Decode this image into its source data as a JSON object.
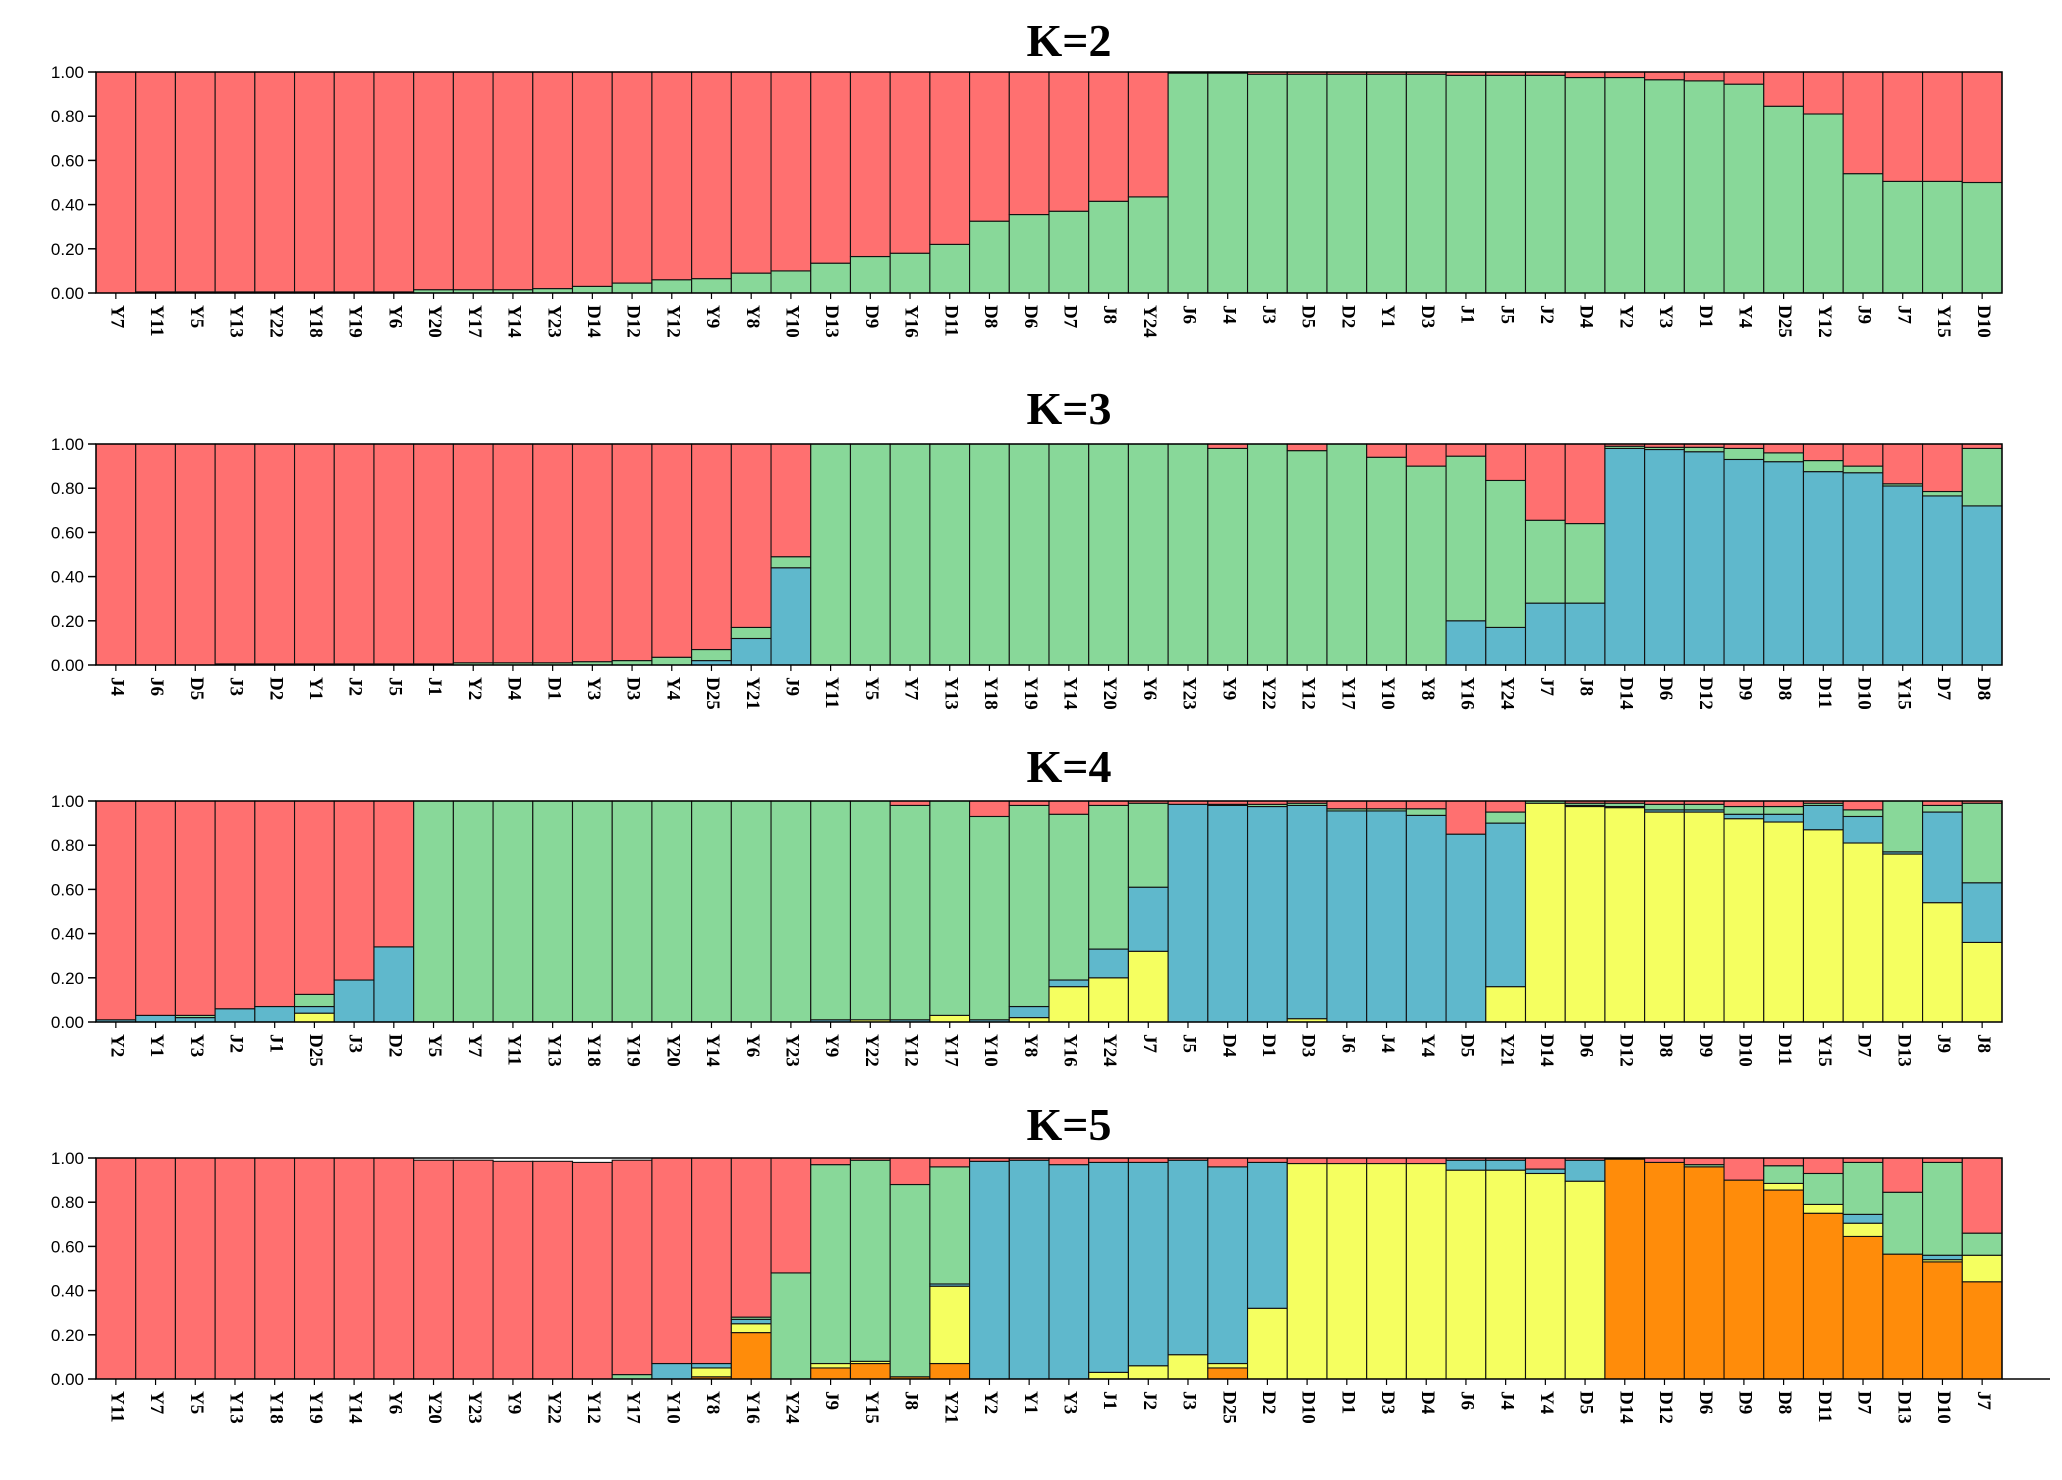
{
  "colors": {
    "red": "#FF7070",
    "green": "#88D899",
    "blue": "#5FB8CC",
    "yellow": "#F5FF60",
    "orange": "#FF8C0A"
  },
  "chart_data": [
    {
      "type": "bar",
      "stacked": true,
      "title": "K=2",
      "ylim": [
        0,
        1
      ],
      "yticks": [
        "0.00",
        "0.20",
        "0.40",
        "0.60",
        "0.80",
        "1.00"
      ],
      "categories": [
        "Y7",
        "Y11",
        "Y5",
        "Y13",
        "Y22",
        "Y18",
        "Y19",
        "Y6",
        "Y20",
        "Y17",
        "Y14",
        "Y23",
        "D14",
        "D12",
        "Y12",
        "Y9",
        "Y8",
        "Y10",
        "D13",
        "D9",
        "Y16",
        "D11",
        "D8",
        "D6",
        "D7",
        "J8",
        "Y24",
        "J6",
        "J4",
        "J3",
        "D5",
        "D2",
        "Y1",
        "D3",
        "J1",
        "J5",
        "J2",
        "D4",
        "Y2",
        "Y3",
        "D1",
        "Y4",
        "D25",
        "Y12",
        "J9",
        "J7",
        "Y15",
        "D10"
      ],
      "series": [
        {
          "name": "cluster-green",
          "color": "green",
          "values": [
            0,
            0.005,
            0.005,
            0.005,
            0.005,
            0.005,
            0.005,
            0.005,
            0.015,
            0.015,
            0.015,
            0.02,
            0.03,
            0.045,
            0.06,
            0.065,
            0.09,
            0.1,
            0.135,
            0.165,
            0.18,
            0.22,
            0.325,
            0.355,
            0.37,
            0.415,
            0.435,
            0.995,
            0.995,
            0.99,
            0.99,
            0.99,
            0.99,
            0.99,
            0.985,
            0.985,
            0.985,
            0.975,
            0.975,
            0.965,
            0.96,
            0.945,
            0.845,
            0.81,
            0.54,
            0.505,
            0.505,
            0.5
          ]
        },
        {
          "name": "cluster-red",
          "color": "red",
          "values": [
            1,
            0.995,
            0.995,
            0.995,
            0.995,
            0.995,
            0.995,
            0.995,
            0.985,
            0.985,
            0.985,
            0.98,
            0.97,
            0.955,
            0.94,
            0.935,
            0.91,
            0.9,
            0.865,
            0.835,
            0.82,
            0.78,
            0.675,
            0.645,
            0.63,
            0.585,
            0.565,
            0.005,
            0.005,
            0.01,
            0.01,
            0.01,
            0.01,
            0.01,
            0.015,
            0.015,
            0.015,
            0.025,
            0.025,
            0.035,
            0.04,
            0.055,
            0.155,
            0.19,
            0.46,
            0.495,
            0.495,
            0.5
          ]
        }
      ]
    },
    {
      "type": "bar",
      "stacked": true,
      "title": "K=3",
      "ylim": [
        0,
        1
      ],
      "yticks": [
        "0.00",
        "0.20",
        "0.40",
        "0.60",
        "0.80",
        "1.00"
      ],
      "categories": [
        "J4",
        "J6",
        "D5",
        "J3",
        "D2",
        "Y1",
        "J2",
        "J5",
        "J1",
        "Y2",
        "D4",
        "D1",
        "Y3",
        "D3",
        "Y4",
        "D25",
        "Y21",
        "J9",
        "Y11",
        "Y5",
        "Y7",
        "Y13",
        "Y18",
        "Y19",
        "Y14",
        "Y20",
        "Y6",
        "Y23",
        "Y9",
        "Y22",
        "Y12",
        "Y17",
        "Y10",
        "Y8",
        "Y16",
        "Y24",
        "J7",
        "J8",
        "D14",
        "D6",
        "D12",
        "D9",
        "D8",
        "D11",
        "D10",
        "Y15",
        "D7",
        "D8"
      ],
      "series": [
        {
          "name": "cluster-blue",
          "color": "blue",
          "values": [
            0,
            0,
            0,
            0,
            0,
            0,
            0,
            0,
            0,
            0,
            0,
            0,
            0,
            0,
            0,
            0.02,
            0.12,
            0.44,
            0,
            0,
            0,
            0,
            0,
            0,
            0,
            0,
            0,
            0,
            0,
            0,
            0,
            0,
            0,
            0,
            0.2,
            0.17,
            0.28,
            0.28,
            0.98,
            0.975,
            0.965,
            0.93,
            0.92,
            0.875,
            0.87,
            0.81,
            0.765,
            0.72
          ]
        },
        {
          "name": "cluster-green",
          "color": "green",
          "values": [
            0,
            0,
            0,
            0.005,
            0.005,
            0.005,
            0.005,
            0.005,
            0.005,
            0.01,
            0.01,
            0.01,
            0.015,
            0.02,
            0.035,
            0.05,
            0.05,
            0.05,
            1,
            1,
            1,
            1,
            1,
            1,
            1,
            1,
            1,
            1,
            0.98,
            1,
            0.97,
            1,
            0.94,
            0.9,
            0.745,
            0.665,
            0.375,
            0.36,
            0.01,
            0.01,
            0.02,
            0.05,
            0.04,
            0.05,
            0.03,
            0.01,
            0.02,
            0.26
          ]
        },
        {
          "name": "cluster-red",
          "color": "red",
          "values": [
            1,
            1,
            1,
            0.995,
            0.995,
            0.995,
            0.995,
            0.995,
            0.995,
            0.99,
            0.99,
            0.99,
            0.985,
            0.98,
            0.965,
            0.93,
            0.83,
            0.51,
            0,
            0,
            0,
            0,
            0,
            0,
            0,
            0,
            0,
            0,
            0.02,
            0,
            0.03,
            0,
            0.06,
            0.1,
            0.055,
            0.165,
            0.345,
            0.36,
            0.01,
            0.015,
            0.015,
            0.02,
            0.04,
            0.075,
            0.1,
            0.18,
            0.215,
            0.02
          ]
        }
      ]
    },
    {
      "type": "bar",
      "stacked": true,
      "title": "K=4",
      "ylim": [
        0,
        1
      ],
      "yticks": [
        "0.00",
        "0.20",
        "0.40",
        "0.60",
        "0.80",
        "1.00"
      ],
      "categories": [
        "Y2",
        "Y1",
        "Y3",
        "J2",
        "J1",
        "D25",
        "J3",
        "D2",
        "Y5",
        "Y7",
        "Y11",
        "Y13",
        "Y18",
        "Y19",
        "Y20",
        "Y14",
        "Y6",
        "Y23",
        "Y9",
        "Y22",
        "Y12",
        "Y17",
        "Y10",
        "Y8",
        "Y16",
        "Y24",
        "J7",
        "J5",
        "D4",
        "D1",
        "D3",
        "J6",
        "J4",
        "Y4",
        "D5",
        "Y21",
        "D14",
        "D6",
        "D12",
        "D8",
        "D9",
        "D10",
        "D11",
        "Y15",
        "D7",
        "D13",
        "J9",
        "J8"
      ],
      "series": [
        {
          "name": "cluster-yellow",
          "color": "yellow",
          "values": [
            0,
            0,
            0,
            0,
            0,
            0.04,
            0,
            0,
            0,
            0,
            0,
            0,
            0,
            0,
            0,
            0,
            0,
            0,
            0,
            0.01,
            0,
            0.03,
            0,
            0.02,
            0.16,
            0.2,
            0.32,
            0,
            0,
            0,
            0.015,
            0,
            0,
            0,
            0,
            0.16,
            0.99,
            0.975,
            0.97,
            0.95,
            0.95,
            0.92,
            0.905,
            0.87,
            0.81,
            0.76,
            0.54,
            0.36
          ]
        },
        {
          "name": "cluster-blue",
          "color": "blue",
          "values": [
            0.01,
            0.03,
            0.02,
            0.06,
            0.07,
            0.03,
            0.19,
            0.34,
            0,
            0,
            0,
            0,
            0,
            0,
            0,
            0,
            0,
            0,
            0.01,
            0,
            0.01,
            0,
            0.01,
            0.05,
            0.03,
            0.13,
            0.29,
            0.985,
            0.98,
            0.975,
            0.965,
            0.955,
            0.955,
            0.935,
            0.85,
            0.74,
            0,
            0.005,
            0.005,
            0.01,
            0.01,
            0.02,
            0.035,
            0.11,
            0.12,
            0.01,
            0.41,
            0.27
          ]
        },
        {
          "name": "cluster-green",
          "color": "green",
          "values": [
            0,
            0,
            0.01,
            0,
            0,
            0.055,
            0,
            0,
            1,
            1,
            1,
            1,
            1,
            1,
            1,
            1,
            1,
            1,
            0.99,
            0.99,
            0.97,
            0.97,
            0.92,
            0.91,
            0.75,
            0.65,
            0.38,
            0,
            0.005,
            0.01,
            0.01,
            0.01,
            0.01,
            0.03,
            0,
            0.05,
            0.01,
            0.01,
            0.015,
            0.025,
            0.025,
            0.035,
            0.035,
            0.01,
            0.03,
            0.23,
            0.03,
            0.36
          ]
        },
        {
          "name": "cluster-red",
          "color": "red",
          "values": [
            0.99,
            0.97,
            0.97,
            0.94,
            0.93,
            0.875,
            0.81,
            0.66,
            0,
            0,
            0,
            0,
            0,
            0,
            0,
            0,
            0,
            0,
            0,
            0,
            0.02,
            0,
            0.07,
            0.02,
            0.06,
            0.02,
            0.01,
            0.015,
            0.015,
            0.015,
            0.01,
            0.035,
            0.035,
            0.035,
            0.15,
            0.05,
            0,
            0.01,
            0.01,
            0.015,
            0.015,
            0.025,
            0.025,
            0.01,
            0.04,
            0,
            0.02,
            0.01
          ]
        }
      ]
    },
    {
      "type": "bar",
      "stacked": true,
      "title": "K=5",
      "ylim": [
        0,
        1
      ],
      "yticks": [
        "0.00",
        "0.20",
        "0.40",
        "0.60",
        "0.80",
        "1.00"
      ],
      "categories": [
        "Y11",
        "Y7",
        "Y5",
        "Y13",
        "Y18",
        "Y19",
        "Y14",
        "Y6",
        "Y20",
        "Y23",
        "Y9",
        "Y22",
        "Y12",
        "Y17",
        "Y10",
        "Y8",
        "Y16",
        "Y24",
        "J9",
        "Y15",
        "J8",
        "Y21",
        "Y2",
        "Y1",
        "Y3",
        "J1",
        "J2",
        "J3",
        "D25",
        "D2",
        "D10",
        "D1",
        "D3",
        "D4",
        "J6",
        "J4",
        "Y4",
        "D5",
        "D14",
        "D12",
        "D6",
        "D9",
        "D8",
        "D11",
        "D7",
        "D13",
        "D10",
        "J7"
      ],
      "series": [
        {
          "name": "cluster-orange",
          "color": "orange",
          "values": [
            0,
            0,
            0,
            0,
            0,
            0,
            0,
            0,
            0,
            0,
            0,
            0,
            0,
            0,
            0,
            0.01,
            0.21,
            0,
            0.05,
            0.07,
            0.01,
            0.07,
            0,
            0,
            0,
            0,
            0,
            0,
            0.05,
            0,
            0,
            0,
            0,
            0,
            0,
            0,
            0,
            0,
            0.995,
            0.98,
            0.96,
            0.9,
            0.855,
            0.75,
            0.645,
            0.565,
            0.53,
            0.44
          ]
        },
        {
          "name": "cluster-yellow",
          "color": "yellow",
          "values": [
            0,
            0,
            0,
            0,
            0,
            0,
            0,
            0,
            0,
            0,
            0,
            0,
            0,
            0,
            0,
            0.04,
            0.04,
            0,
            0.02,
            0.01,
            0,
            0.35,
            0,
            0,
            0,
            0.03,
            0.06,
            0.11,
            0.02,
            0.32,
            0.975,
            0.975,
            0.975,
            0.975,
            0.945,
            0.945,
            0.93,
            0.895,
            0,
            0,
            0,
            0,
            0.03,
            0.04,
            0.06,
            0,
            0.01,
            0.12
          ]
        },
        {
          "name": "cluster-blue",
          "color": "blue",
          "values": [
            0,
            0,
            0,
            0,
            0,
            0,
            0,
            0,
            0,
            0,
            0,
            0,
            0,
            0,
            0.07,
            0.02,
            0.02,
            0,
            0,
            0,
            0,
            0.01,
            0.985,
            0.99,
            0.97,
            0.95,
            0.92,
            0.88,
            0.89,
            0.66,
            0,
            0,
            0,
            0,
            0.045,
            0.045,
            0.02,
            0.095,
            0,
            0,
            0,
            0,
            0,
            0,
            0.04,
            0,
            0.02,
            0
          ]
        },
        {
          "name": "cluster-green",
          "color": "green",
          "values": [
            0,
            0,
            0,
            0,
            0,
            0,
            0,
            0,
            0,
            0,
            0,
            0,
            0,
            0.02,
            0,
            0,
            0.01,
            0.48,
            0.9,
            0.91,
            0.87,
            0.53,
            0,
            0,
            0,
            0,
            0,
            0,
            0,
            0,
            0,
            0,
            0,
            0,
            0,
            0,
            0,
            0,
            0,
            0,
            0.01,
            0,
            0.08,
            0.14,
            0.235,
            0.28,
            0.42,
            0.1
          ]
        },
        {
          "name": "cluster-red",
          "color": "red",
          "values": [
            1,
            1,
            1,
            1,
            1,
            1,
            1,
            1,
            0.99,
            0.99,
            0.985,
            0.985,
            0.98,
            0.97,
            0.93,
            0.93,
            0.72,
            0.52,
            0.03,
            0.01,
            0.12,
            0.04,
            0.015,
            0.01,
            0.03,
            0.02,
            0.02,
            0.01,
            0.04,
            0.02,
            0.025,
            0.025,
            0.025,
            0.025,
            0.01,
            0.01,
            0.05,
            0.01,
            0.005,
            0.02,
            0.03,
            0.1,
            0.035,
            0.07,
            0.02,
            0.155,
            0.02,
            0.34
          ]
        }
      ]
    }
  ]
}
